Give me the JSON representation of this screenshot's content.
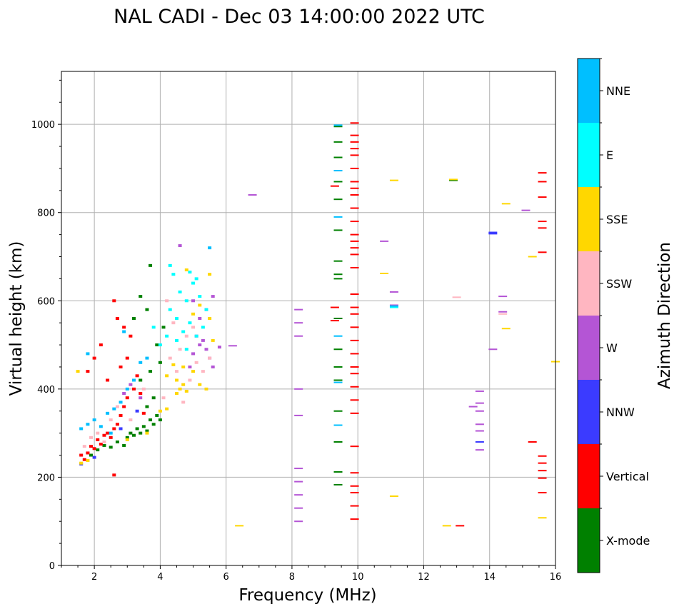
{
  "chart_data": {
    "type": "scatter",
    "title": "NAL CADI - Dec 03 14:00:00 2022 UTC",
    "xlabel": "Frequency (MHz)",
    "ylabel": "Virtual height (km)",
    "xlim": [
      1,
      16
    ],
    "ylim": [
      0,
      1120
    ],
    "xticks": [
      2,
      4,
      6,
      8,
      10,
      12,
      14,
      16
    ],
    "yticks": [
      0,
      200,
      400,
      600,
      800,
      1000
    ],
    "grid": true,
    "colorbar": {
      "label": "Azimuth Direction",
      "categories": [
        "X-mode",
        "Vertical",
        "NNW",
        "W",
        "SSW",
        "SSE",
        "E",
        "NNE"
      ],
      "colors": [
        "#008000",
        "#ff0000",
        "#3b3bff",
        "#b455d5",
        "#ffb6c1",
        "#ffd700",
        "#00ffff",
        "#00bfff"
      ]
    },
    "series": [
      {
        "name": "X-mode",
        "points": [
          [
            1.9,
            250
          ],
          [
            2.1,
            262
          ],
          [
            2.3,
            272
          ],
          [
            2.5,
            268
          ],
          [
            2.7,
            280
          ],
          [
            2.9,
            272
          ],
          [
            3.0,
            290
          ],
          [
            3.1,
            300
          ],
          [
            3.2,
            295
          ],
          [
            3.3,
            310
          ],
          [
            3.4,
            300
          ],
          [
            3.5,
            315
          ],
          [
            3.6,
            305
          ],
          [
            3.7,
            330
          ],
          [
            3.8,
            320
          ],
          [
            3.9,
            340
          ],
          [
            4.0,
            330
          ],
          [
            3.6,
            360
          ],
          [
            3.8,
            380
          ],
          [
            3.4,
            420
          ],
          [
            3.7,
            440
          ],
          [
            4.0,
            460
          ],
          [
            3.9,
            500
          ],
          [
            4.1,
            540
          ],
          [
            3.6,
            580
          ],
          [
            3.4,
            610
          ],
          [
            3.7,
            680
          ],
          [
            3.2,
            560
          ],
          [
            9.4,
            995
          ],
          [
            9.4,
            960
          ],
          [
            9.4,
            925
          ],
          [
            9.4,
            870
          ],
          [
            9.4,
            830
          ],
          [
            9.4,
            760
          ],
          [
            9.4,
            690
          ],
          [
            9.4,
            660
          ],
          [
            9.4,
            650
          ],
          [
            9.4,
            560
          ],
          [
            9.4,
            490
          ],
          [
            9.4,
            450
          ],
          [
            9.4,
            420
          ],
          [
            9.4,
            350
          ],
          [
            9.4,
            280
          ],
          [
            9.4,
            212
          ],
          [
            9.4,
            183
          ],
          [
            12.9,
            873
          ]
        ]
      },
      {
        "name": "Vertical",
        "points": [
          [
            1.6,
            250
          ],
          [
            1.7,
            240
          ],
          [
            1.8,
            255
          ],
          [
            1.9,
            270
          ],
          [
            2.0,
            265
          ],
          [
            2.1,
            285
          ],
          [
            2.2,
            275
          ],
          [
            2.3,
            295
          ],
          [
            2.4,
            300
          ],
          [
            2.5,
            290
          ],
          [
            2.6,
            310
          ],
          [
            2.7,
            320
          ],
          [
            2.8,
            340
          ],
          [
            2.9,
            360
          ],
          [
            3.0,
            380
          ],
          [
            3.2,
            400
          ],
          [
            3.3,
            430
          ],
          [
            3.0,
            470
          ],
          [
            2.8,
            450
          ],
          [
            3.1,
            520
          ],
          [
            2.9,
            540
          ],
          [
            2.7,
            560
          ],
          [
            2.6,
            600
          ],
          [
            2.2,
            500
          ],
          [
            2.0,
            470
          ],
          [
            1.8,
            440
          ],
          [
            2.4,
            420
          ],
          [
            2.6,
            205
          ],
          [
            3.4,
            390
          ],
          [
            3.5,
            345
          ],
          [
            9.3,
            585
          ],
          [
            9.3,
            555
          ],
          [
            9.3,
            860
          ],
          [
            9.9,
            1003
          ],
          [
            9.9,
            975
          ],
          [
            9.9,
            960
          ],
          [
            9.9,
            945
          ],
          [
            9.9,
            930
          ],
          [
            9.9,
            900
          ],
          [
            9.9,
            870
          ],
          [
            9.9,
            855
          ],
          [
            9.9,
            840
          ],
          [
            9.9,
            810
          ],
          [
            9.9,
            780
          ],
          [
            9.9,
            750
          ],
          [
            9.9,
            735
          ],
          [
            9.9,
            720
          ],
          [
            9.9,
            705
          ],
          [
            9.9,
            675
          ],
          [
            9.9,
            615
          ],
          [
            9.9,
            585
          ],
          [
            9.9,
            570
          ],
          [
            9.9,
            540
          ],
          [
            9.9,
            510
          ],
          [
            9.9,
            480
          ],
          [
            9.9,
            450
          ],
          [
            9.9,
            435
          ],
          [
            9.9,
            405
          ],
          [
            9.9,
            375
          ],
          [
            9.9,
            345
          ],
          [
            9.9,
            270
          ],
          [
            9.9,
            210
          ],
          [
            9.9,
            180
          ],
          [
            9.9,
            165
          ],
          [
            9.9,
            135
          ],
          [
            9.9,
            105
          ],
          [
            13.1,
            90
          ],
          [
            15.6,
            890
          ],
          [
            15.6,
            870
          ],
          [
            15.6,
            835
          ],
          [
            15.6,
            780
          ],
          [
            15.6,
            765
          ],
          [
            15.6,
            710
          ],
          [
            15.3,
            280
          ],
          [
            15.6,
            248
          ],
          [
            15.6,
            232
          ],
          [
            15.6,
            215
          ],
          [
            15.6,
            198
          ],
          [
            15.6,
            165
          ]
        ]
      },
      {
        "name": "NNW",
        "points": [
          [
            1.6,
            230
          ],
          [
            2.0,
            245
          ],
          [
            2.8,
            310
          ],
          [
            3.3,
            350
          ],
          [
            14.1,
            755
          ],
          [
            14.1,
            752
          ],
          [
            13.7,
            280
          ]
        ]
      },
      {
        "name": "W",
        "points": [
          [
            2.9,
            390
          ],
          [
            3.1,
            410
          ],
          [
            3.4,
            380
          ],
          [
            5.0,
            480
          ],
          [
            5.2,
            500
          ],
          [
            5.4,
            490
          ],
          [
            5.5,
            470
          ],
          [
            5.3,
            510
          ],
          [
            5.1,
            520
          ],
          [
            5.6,
            450
          ],
          [
            5.8,
            495
          ],
          [
            6.2,
            498
          ],
          [
            5.2,
            560
          ],
          [
            5.4,
            580
          ],
          [
            5.6,
            610
          ],
          [
            5.0,
            600
          ],
          [
            4.9,
            450
          ],
          [
            4.6,
            725
          ],
          [
            6.8,
            840
          ],
          [
            8.2,
            580
          ],
          [
            8.2,
            550
          ],
          [
            8.2,
            520
          ],
          [
            8.2,
            400
          ],
          [
            8.2,
            340
          ],
          [
            8.2,
            220
          ],
          [
            8.2,
            190
          ],
          [
            8.2,
            160
          ],
          [
            8.2,
            130
          ],
          [
            8.2,
            100
          ],
          [
            10.8,
            735
          ],
          [
            11.1,
            620
          ],
          [
            11.1,
            590
          ],
          [
            14.1,
            490
          ],
          [
            13.7,
            395
          ],
          [
            13.7,
            368
          ],
          [
            13.7,
            350
          ],
          [
            13.5,
            360
          ],
          [
            13.7,
            320
          ],
          [
            13.7,
            305
          ],
          [
            13.7,
            262
          ],
          [
            14.4,
            610
          ],
          [
            14.4,
            575
          ],
          [
            15.1,
            805
          ]
        ]
      },
      {
        "name": "SSW",
        "points": [
          [
            1.7,
            270
          ],
          [
            1.9,
            290
          ],
          [
            2.1,
            300
          ],
          [
            2.3,
            280
          ],
          [
            2.5,
            330
          ],
          [
            2.7,
            360
          ],
          [
            3.1,
            330
          ],
          [
            3.5,
            400
          ],
          [
            4.1,
            380
          ],
          [
            4.3,
            470
          ],
          [
            4.5,
            440
          ],
          [
            4.7,
            370
          ],
          [
            4.9,
            420
          ],
          [
            5.1,
            460
          ],
          [
            5.3,
            440
          ],
          [
            5.5,
            470
          ],
          [
            4.6,
            490
          ],
          [
            4.8,
            520
          ],
          [
            5.0,
            540
          ],
          [
            4.4,
            550
          ],
          [
            4.2,
            600
          ],
          [
            13.0,
            608
          ],
          [
            14.4,
            570
          ]
        ]
      },
      {
        "name": "SSE",
        "points": [
          [
            1.6,
            232
          ],
          [
            1.8,
            238
          ],
          [
            3.0,
            285
          ],
          [
            3.6,
            300
          ],
          [
            4.0,
            350
          ],
          [
            4.2,
            355
          ],
          [
            4.5,
            390
          ],
          [
            4.6,
            400
          ],
          [
            4.7,
            410
          ],
          [
            4.8,
            395
          ],
          [
            4.5,
            420
          ],
          [
            4.4,
            455
          ],
          [
            4.2,
            430
          ],
          [
            4.7,
            450
          ],
          [
            5.0,
            440
          ],
          [
            5.2,
            410
          ],
          [
            5.4,
            400
          ],
          [
            5.0,
            570
          ],
          [
            5.5,
            560
          ],
          [
            5.6,
            510
          ],
          [
            5.2,
            590
          ],
          [
            4.8,
            670
          ],
          [
            5.5,
            660
          ],
          [
            1.5,
            440
          ],
          [
            6.4,
            90
          ],
          [
            10.8,
            662
          ],
          [
            11.1,
            873
          ],
          [
            11.1,
            157
          ],
          [
            12.9,
            875
          ],
          [
            12.7,
            90
          ],
          [
            14.5,
            820
          ],
          [
            14.5,
            537
          ],
          [
            15.3,
            700
          ],
          [
            16.0,
            462
          ],
          [
            15.6,
            108
          ]
        ]
      },
      {
        "name": "E",
        "points": [
          [
            4.3,
            580
          ],
          [
            4.5,
            560
          ],
          [
            4.7,
            530
          ],
          [
            4.9,
            550
          ],
          [
            5.1,
            520
          ],
          [
            5.3,
            540
          ],
          [
            4.6,
            620
          ],
          [
            4.8,
            600
          ],
          [
            5.0,
            640
          ],
          [
            5.2,
            610
          ],
          [
            5.4,
            580
          ],
          [
            4.4,
            660
          ],
          [
            4.3,
            680
          ],
          [
            4.9,
            665
          ],
          [
            5.1,
            650
          ],
          [
            4.2,
            520
          ],
          [
            4.0,
            500
          ],
          [
            4.5,
            510
          ],
          [
            4.8,
            490
          ],
          [
            3.8,
            540
          ],
          [
            11.1,
            585
          ]
        ]
      },
      {
        "name": "NNE",
        "points": [
          [
            1.6,
            310
          ],
          [
            1.8,
            320
          ],
          [
            2.0,
            330
          ],
          [
            2.2,
            315
          ],
          [
            2.4,
            345
          ],
          [
            2.6,
            355
          ],
          [
            2.8,
            370
          ],
          [
            3.0,
            400
          ],
          [
            2.5,
            300
          ],
          [
            3.2,
            420
          ],
          [
            3.4,
            460
          ],
          [
            3.6,
            470
          ],
          [
            1.8,
            480
          ],
          [
            2.9,
            530
          ],
          [
            5.5,
            720
          ],
          [
            9.4,
            998
          ],
          [
            9.4,
            895
          ],
          [
            9.4,
            790
          ],
          [
            9.4,
            520
          ],
          [
            9.4,
            415
          ],
          [
            9.4,
            318
          ],
          [
            11.1,
            588
          ]
        ]
      }
    ]
  }
}
